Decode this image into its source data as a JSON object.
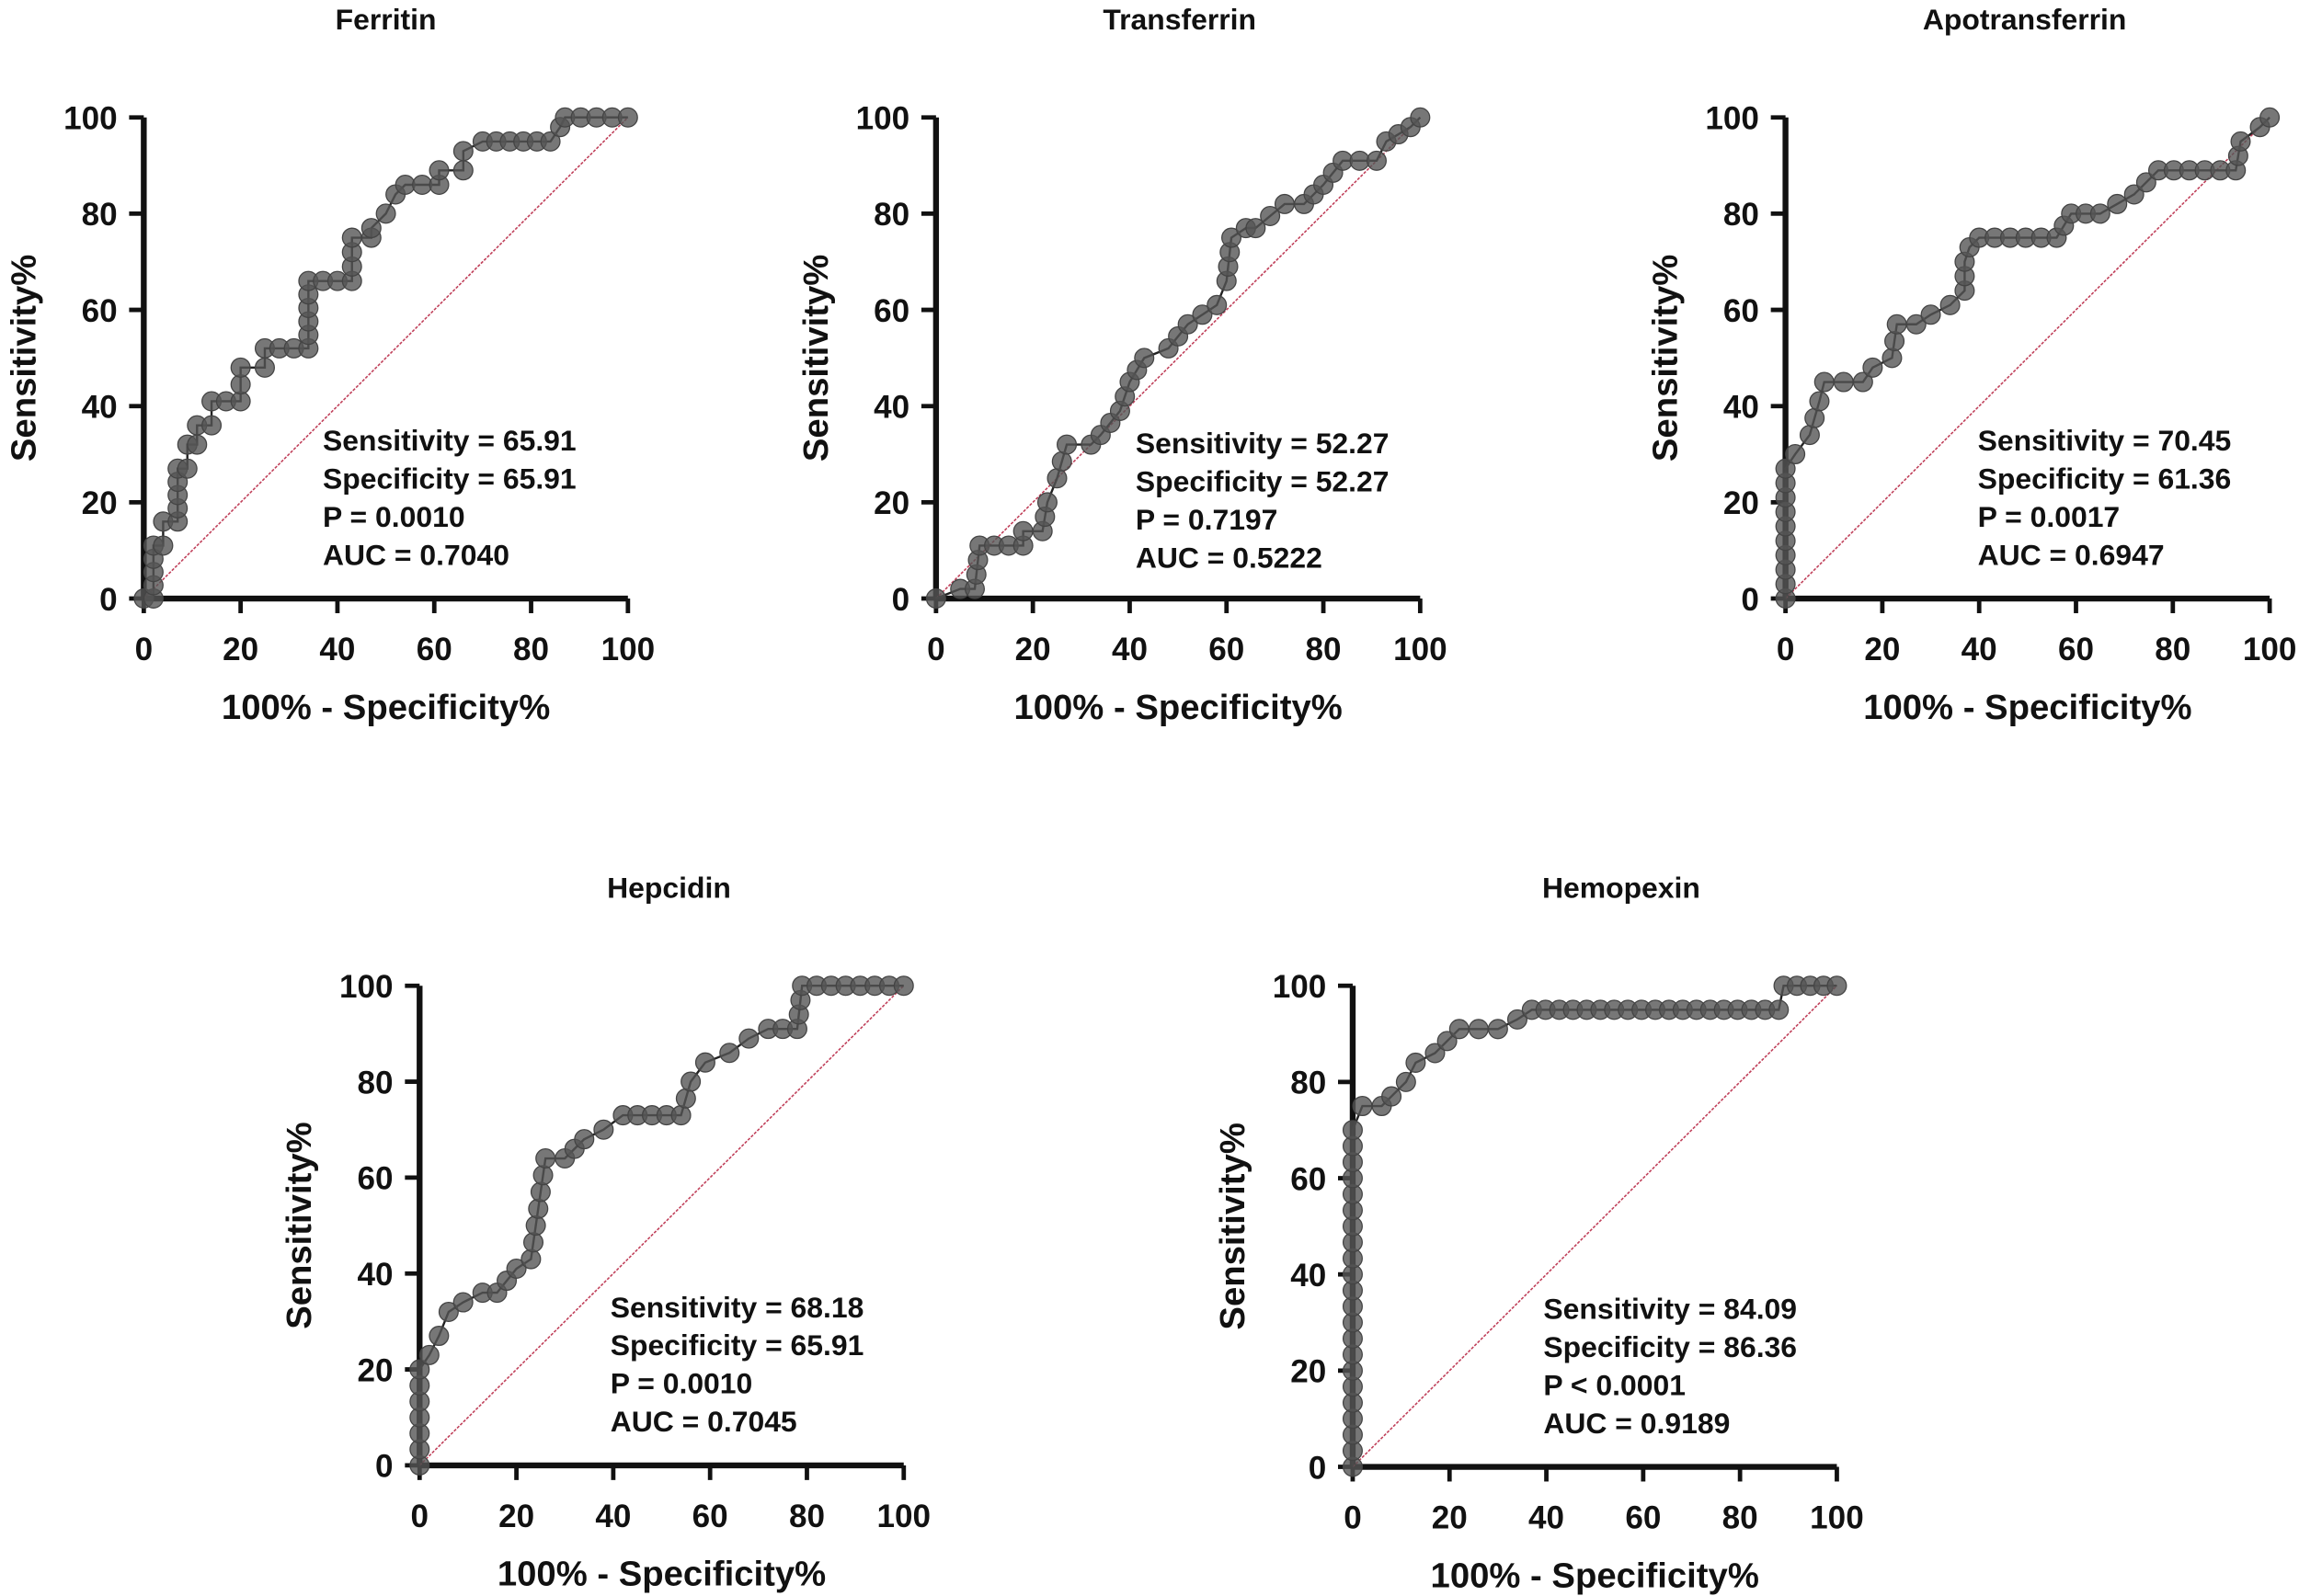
{
  "chart_data": [
    {
      "type": "line",
      "title": "Ferritin",
      "xlabel": "100% - Specificity%",
      "ylabel": "Sensitivity%",
      "xlim": [
        0,
        100
      ],
      "ylim": [
        0,
        100
      ],
      "xticks": [
        "0",
        "20",
        "40",
        "60",
        "80",
        "100"
      ],
      "yticks": [
        "0",
        "20",
        "40",
        "60",
        "80",
        "100"
      ],
      "stats": [
        "Sensitivity = 65.91",
        "Specificity = 65.91",
        "P = 0.0010",
        "AUC = 0.7040"
      ],
      "reference_line": [
        [
          0,
          0
        ],
        [
          100,
          100
        ]
      ],
      "points": [
        [
          0,
          0
        ],
        [
          2,
          0
        ],
        [
          2,
          11
        ],
        [
          4,
          11
        ],
        [
          4,
          16
        ],
        [
          7,
          16
        ],
        [
          7,
          27
        ],
        [
          9,
          27
        ],
        [
          9,
          32
        ],
        [
          11,
          32
        ],
        [
          11,
          36
        ],
        [
          14,
          36
        ],
        [
          14,
          41
        ],
        [
          20,
          41
        ],
        [
          20,
          48
        ],
        [
          25,
          48
        ],
        [
          25,
          52
        ],
        [
          34,
          52
        ],
        [
          34,
          66
        ],
        [
          43,
          66
        ],
        [
          43,
          75
        ],
        [
          47,
          75
        ],
        [
          47,
          77
        ],
        [
          50,
          80
        ],
        [
          52,
          84
        ],
        [
          54,
          86
        ],
        [
          61,
          86
        ],
        [
          61,
          89
        ],
        [
          66,
          89
        ],
        [
          66,
          93
        ],
        [
          70,
          95
        ],
        [
          84,
          95
        ],
        [
          86,
          98
        ],
        [
          87,
          100
        ],
        [
          100,
          100
        ]
      ]
    },
    {
      "type": "line",
      "title": "Transferrin",
      "xlabel": "100% - Specificity%",
      "ylabel": "Sensitivity%",
      "xlim": [
        0,
        100
      ],
      "ylim": [
        0,
        100
      ],
      "xticks": [
        "0",
        "20",
        "40",
        "60",
        "80",
        "100"
      ],
      "yticks": [
        "0",
        "20",
        "40",
        "60",
        "80",
        "100"
      ],
      "stats": [
        "Sensitivity = 52.27",
        "Specificity = 52.27",
        "P = 0.7197",
        "AUC = 0.5222"
      ],
      "reference_line": [
        [
          0,
          0
        ],
        [
          100,
          100
        ]
      ],
      "points": [
        [
          0,
          0
        ],
        [
          5,
          2
        ],
        [
          8,
          2
        ],
        [
          9,
          11
        ],
        [
          18,
          11
        ],
        [
          18,
          14
        ],
        [
          22,
          14
        ],
        [
          23,
          20
        ],
        [
          25,
          25
        ],
        [
          27,
          32
        ],
        [
          32,
          32
        ],
        [
          34,
          34
        ],
        [
          38,
          39
        ],
        [
          40,
          45
        ],
        [
          43,
          50
        ],
        [
          48,
          52
        ],
        [
          52,
          57
        ],
        [
          58,
          61
        ],
        [
          60,
          66
        ],
        [
          61,
          75
        ],
        [
          64,
          77
        ],
        [
          66,
          77
        ],
        [
          72,
          82
        ],
        [
          76,
          82
        ],
        [
          80,
          86
        ],
        [
          84,
          91
        ],
        [
          91,
          91
        ],
        [
          93,
          95
        ],
        [
          98,
          98
        ],
        [
          100,
          100
        ]
      ]
    },
    {
      "type": "line",
      "title": "Apotransferrin",
      "xlabel": "100% - Specificity%",
      "ylabel": "Sensitivity%",
      "xlim": [
        0,
        100
      ],
      "ylim": [
        0,
        100
      ],
      "xticks": [
        "0",
        "20",
        "40",
        "60",
        "80",
        "100"
      ],
      "yticks": [
        "0",
        "20",
        "40",
        "60",
        "80",
        "100"
      ],
      "stats": [
        "Sensitivity = 70.45",
        "Specificity = 61.36",
        "P = 0.0017",
        "AUC = 0.6947"
      ],
      "reference_line": [
        [
          0,
          0
        ],
        [
          100,
          100
        ]
      ],
      "points": [
        [
          0,
          0
        ],
        [
          0,
          9
        ],
        [
          0,
          18
        ],
        [
          0,
          27
        ],
        [
          2,
          30
        ],
        [
          5,
          34
        ],
        [
          7,
          41
        ],
        [
          8,
          45
        ],
        [
          16,
          45
        ],
        [
          18,
          48
        ],
        [
          22,
          50
        ],
        [
          23,
          57
        ],
        [
          27,
          57
        ],
        [
          30,
          59
        ],
        [
          34,
          61
        ],
        [
          37,
          64
        ],
        [
          37,
          70
        ],
        [
          38,
          73
        ],
        [
          40,
          75
        ],
        [
          56,
          75
        ],
        [
          59,
          80
        ],
        [
          65,
          80
        ],
        [
          72,
          84
        ],
        [
          77,
          89
        ],
        [
          93,
          89
        ],
        [
          94,
          95
        ],
        [
          98,
          98
        ],
        [
          100,
          100
        ]
      ]
    },
    {
      "type": "line",
      "title": "Hepcidin",
      "xlabel": "100% - Specificity%",
      "ylabel": "Sensitivity%",
      "xlim": [
        0,
        100
      ],
      "ylim": [
        0,
        100
      ],
      "xticks": [
        "0",
        "20",
        "40",
        "60",
        "80",
        "100"
      ],
      "yticks": [
        "0",
        "20",
        "40",
        "60",
        "80",
        "100"
      ],
      "stats": [
        "Sensitivity = 68.18",
        "Specificity = 65.91",
        "P = 0.0010",
        "AUC = 0.7045"
      ],
      "reference_line": [
        [
          0,
          0
        ],
        [
          100,
          100
        ]
      ],
      "points": [
        [
          0,
          0
        ],
        [
          0,
          10
        ],
        [
          0,
          20
        ],
        [
          2,
          23
        ],
        [
          4,
          27
        ],
        [
          6,
          32
        ],
        [
          9,
          34
        ],
        [
          13,
          36
        ],
        [
          16,
          36
        ],
        [
          20,
          41
        ],
        [
          23,
          43
        ],
        [
          24,
          50
        ],
        [
          25,
          57
        ],
        [
          26,
          64
        ],
        [
          30,
          64
        ],
        [
          34,
          68
        ],
        [
          38,
          70
        ],
        [
          42,
          73
        ],
        [
          54,
          73
        ],
        [
          56,
          80
        ],
        [
          59,
          84
        ],
        [
          64,
          86
        ],
        [
          68,
          89
        ],
        [
          72,
          91
        ],
        [
          78,
          91
        ],
        [
          79,
          100
        ],
        [
          100,
          100
        ]
      ]
    },
    {
      "type": "line",
      "title": "Hemopexin",
      "xlabel": "100% - Specificity%",
      "ylabel": "Sensitivity%",
      "xlim": [
        0,
        100
      ],
      "ylim": [
        0,
        100
      ],
      "xticks": [
        "0",
        "20",
        "40",
        "60",
        "80",
        "100"
      ],
      "yticks": [
        "0",
        "20",
        "40",
        "60",
        "80",
        "100"
      ],
      "stats": [
        "Sensitivity = 84.09",
        "Specificity = 86.36",
        "P < 0.0001",
        "AUC = 0.9189"
      ],
      "reference_line": [
        [
          0,
          0
        ],
        [
          100,
          100
        ]
      ],
      "points": [
        [
          0,
          0
        ],
        [
          0,
          10
        ],
        [
          0,
          20
        ],
        [
          0,
          30
        ],
        [
          0,
          40
        ],
        [
          0,
          50
        ],
        [
          0,
          60
        ],
        [
          0,
          70
        ],
        [
          2,
          75
        ],
        [
          6,
          75
        ],
        [
          8,
          77
        ],
        [
          11,
          80
        ],
        [
          13,
          84
        ],
        [
          17,
          86
        ],
        [
          22,
          91
        ],
        [
          30,
          91
        ],
        [
          34,
          93
        ],
        [
          37,
          95
        ],
        [
          88,
          95
        ],
        [
          89,
          100
        ],
        [
          100,
          100
        ]
      ]
    }
  ],
  "colors": {
    "curve": "#222222",
    "marker": "#555555",
    "reference": "#c0405a",
    "axis": "#111111"
  }
}
